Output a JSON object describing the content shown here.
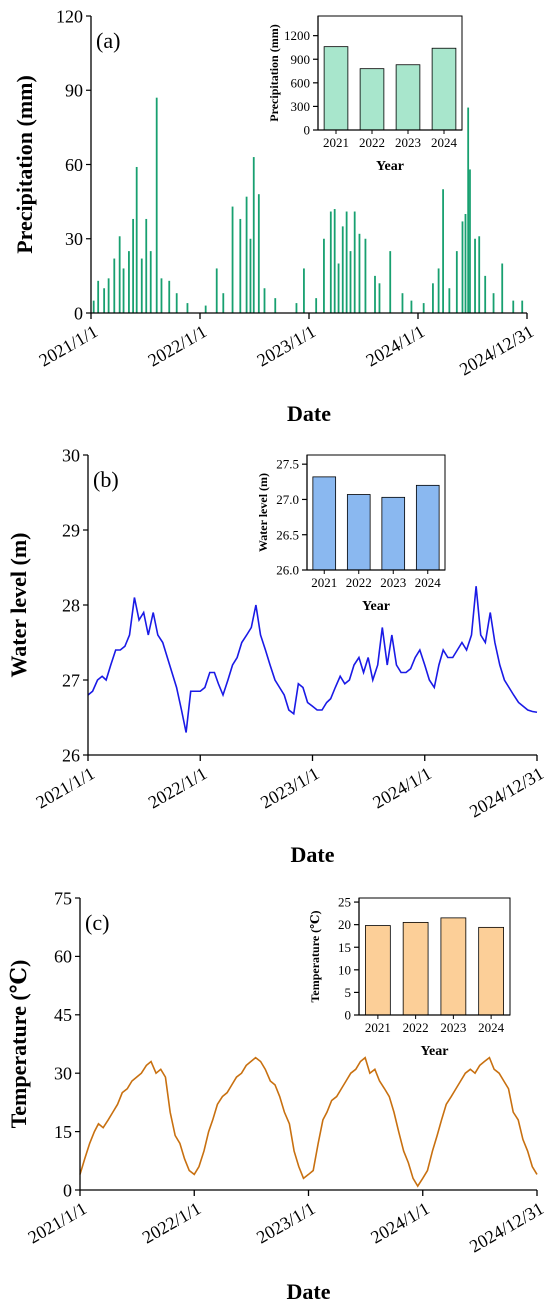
{
  "chart_data": [
    {
      "type": "bar",
      "annotation": "(a)",
      "xlabel": "Date",
      "ylabel": "Precipitation (mm)",
      "color": "#18a070",
      "x": [
        "2021/1/10",
        "2021/1/25",
        "2021/2/14",
        "2021/3/1",
        "2021/3/20",
        "2021/4/7",
        "2021/4/20",
        "2021/5/8",
        "2021/5/22",
        "2021/6/3",
        "2021/6/20",
        "2021/7/5",
        "2021/7/20",
        "2021/8/9",
        "2021/8/25",
        "2021/9/20",
        "2021/10/15",
        "2021/11/20",
        "2022/1/20",
        "2022/2/26",
        "2022/3/20",
        "2022/4/20",
        "2022/5/16",
        "2022/6/6",
        "2022/6/19",
        "2022/6/30",
        "2022/7/17",
        "2022/8/5",
        "2022/9/10",
        "2022/11/20",
        "2022/12/15",
        "2023/1/25",
        "2023/2/20",
        "2023/3/15",
        "2023/3/28",
        "2023/4/10",
        "2023/4/24",
        "2023/5/7",
        "2023/5/20",
        "2023/6/3",
        "2023/6/19",
        "2023/7/9",
        "2023/8/10",
        "2023/8/25",
        "2023/9/30",
        "2023/11/10",
        "2023/12/10",
        "2024/1/20",
        "2024/2/20",
        "2024/3/10",
        "2024/3/25",
        "2024/4/15",
        "2024/5/10",
        "2024/5/29",
        "2024/6/8",
        "2024/6/17",
        "2024/6/23",
        "2024/7/10",
        "2024/7/24",
        "2024/8/13",
        "2024/9/10",
        "2024/10/9",
        "2024/11/15",
        "2024/12/15"
      ],
      "values": [
        5,
        13,
        10,
        14,
        22,
        31,
        18,
        25,
        38,
        59,
        22,
        38,
        25,
        87,
        14,
        13,
        8,
        4,
        3,
        18,
        8,
        43,
        38,
        47,
        30,
        63,
        48,
        10,
        6,
        4,
        18,
        6,
        30,
        41,
        42,
        20,
        35,
        41,
        25,
        41,
        32,
        30,
        15,
        12,
        25,
        8,
        5,
        4,
        12,
        18,
        50,
        10,
        25,
        37,
        40,
        83,
        58,
        30,
        31,
        15,
        8,
        20,
        5,
        5
      ],
      "xlim": [
        "2021/1/1",
        "2024/12/31"
      ],
      "xticks": [
        "2021/1/1",
        "2022/1/1",
        "2023/1/1",
        "2024/1/1",
        "2024/12/31"
      ],
      "ylim": [
        0,
        120
      ],
      "yticks": [
        0,
        30,
        60,
        90,
        120
      ]
    },
    {
      "type": "bar",
      "xlabel": "Year",
      "ylabel": "Precipitation (mm)",
      "color": "#a8e6cc",
      "categories": [
        "2021",
        "2022",
        "2023",
        "2024"
      ],
      "values": [
        1060,
        780,
        830,
        1040
      ],
      "ylim": [
        0,
        1450
      ],
      "yticks": [
        0,
        300,
        600,
        900,
        1200
      ]
    },
    {
      "type": "line",
      "annotation": "(b)",
      "xlabel": "Date",
      "ylabel": "Water level (m)",
      "color": "#1a1ae6",
      "x": [
        "2021/1/1",
        "2021/1/16",
        "2021/2/1",
        "2021/2/16",
        "2021/3/1",
        "2021/3/16",
        "2021/4/1",
        "2021/4/16",
        "2021/5/1",
        "2021/5/16",
        "2021/6/1",
        "2021/6/16",
        "2021/7/1",
        "2021/7/16",
        "2021/8/1",
        "2021/8/16",
        "2021/9/1",
        "2021/9/16",
        "2021/10/1",
        "2021/10/16",
        "2021/11/1",
        "2021/11/16",
        "2021/12/1",
        "2021/12/16",
        "2022/1/1",
        "2022/1/16",
        "2022/2/1",
        "2022/2/16",
        "2022/3/1",
        "2022/3/16",
        "2022/4/1",
        "2022/4/16",
        "2022/5/1",
        "2022/5/16",
        "2022/6/1",
        "2022/6/16",
        "2022/7/1",
        "2022/7/16",
        "2022/8/1",
        "2022/8/16",
        "2022/9/1",
        "2022/9/16",
        "2022/10/1",
        "2022/10/16",
        "2022/11/1",
        "2022/11/16",
        "2022/12/1",
        "2022/12/16",
        "2023/1/1",
        "2023/1/16",
        "2023/2/1",
        "2023/2/16",
        "2023/3/1",
        "2023/3/16",
        "2023/4/1",
        "2023/4/16",
        "2023/5/1",
        "2023/5/16",
        "2023/6/1",
        "2023/6/16",
        "2023/7/1",
        "2023/7/16",
        "2023/8/1",
        "2023/8/16",
        "2023/9/1",
        "2023/9/16",
        "2023/10/1",
        "2023/10/16",
        "2023/11/1",
        "2023/11/16",
        "2023/12/1",
        "2023/12/16",
        "2024/1/1",
        "2024/1/16",
        "2024/2/1",
        "2024/2/16",
        "2024/3/1",
        "2024/3/16",
        "2024/4/1",
        "2024/4/16",
        "2024/5/1",
        "2024/5/16",
        "2024/6/1",
        "2024/6/16",
        "2024/7/1",
        "2024/7/16",
        "2024/8/1",
        "2024/8/16",
        "2024/9/1",
        "2024/9/16",
        "2024/10/1",
        "2024/10/16",
        "2024/11/1",
        "2024/11/16",
        "2024/12/1",
        "2024/12/16",
        "2024/12/31"
      ],
      "values": [
        26.8,
        26.85,
        27.0,
        27.05,
        27.0,
        27.2,
        27.4,
        27.4,
        27.45,
        27.6,
        28.1,
        27.8,
        27.9,
        27.6,
        27.9,
        27.6,
        27.5,
        27.3,
        27.1,
        26.9,
        26.6,
        26.3,
        26.85,
        26.85,
        26.85,
        26.9,
        27.1,
        27.1,
        26.95,
        26.8,
        27.0,
        27.2,
        27.3,
        27.5,
        27.6,
        27.7,
        28.0,
        27.6,
        27.4,
        27.2,
        27.0,
        26.9,
        26.8,
        26.6,
        26.55,
        26.95,
        26.9,
        26.7,
        26.65,
        26.6,
        26.6,
        26.7,
        26.75,
        26.9,
        27.05,
        26.95,
        27.0,
        27.2,
        27.3,
        27.1,
        27.3,
        27.0,
        27.2,
        27.7,
        27.2,
        27.6,
        27.2,
        27.1,
        27.1,
        27.15,
        27.3,
        27.4,
        27.2,
        27.0,
        26.9,
        27.2,
        27.4,
        27.3,
        27.3,
        27.4,
        27.5,
        27.4,
        27.6,
        28.25,
        27.6,
        27.5,
        27.9,
        27.5,
        27.2,
        27.0,
        26.9,
        26.8,
        26.7,
        26.65,
        26.6,
        26.58,
        26.57
      ],
      "xlim": [
        "2021/1/1",
        "2024/12/31"
      ],
      "xticks": [
        "2021/1/1",
        "2022/1/1",
        "2023/1/1",
        "2024/1/1",
        "2024/12/31"
      ],
      "ylim": [
        26,
        30
      ],
      "yticks": [
        26,
        27,
        28,
        29,
        30
      ]
    },
    {
      "type": "bar",
      "xlabel": "Year",
      "ylabel": "Water level (m)",
      "color": "#8ab8f0",
      "categories": [
        "2021",
        "2022",
        "2023",
        "2024"
      ],
      "values": [
        27.32,
        27.07,
        27.03,
        27.2
      ],
      "ylim": [
        26,
        27.63
      ],
      "yticks": [
        {
          "value": 26,
          "label": "26.0"
        },
        26.5,
        {
          "value": 27,
          "label": "27.0"
        },
        27.5
      ]
    },
    {
      "type": "line",
      "annotation": "(c)",
      "xlabel": "Date",
      "ylabel": "Temperature (℃)",
      "color": "#c87010",
      "x": [
        "2021/1/1",
        "2021/1/16",
        "2021/2/1",
        "2021/2/16",
        "2021/3/1",
        "2021/3/16",
        "2021/4/1",
        "2021/4/16",
        "2021/5/1",
        "2021/5/16",
        "2021/6/1",
        "2021/6/16",
        "2021/7/1",
        "2021/7/16",
        "2021/8/1",
        "2021/8/16",
        "2021/9/1",
        "2021/9/16",
        "2021/10/1",
        "2021/10/16",
        "2021/11/1",
        "2021/11/16",
        "2021/12/1",
        "2021/12/16",
        "2022/1/1",
        "2022/1/16",
        "2022/2/1",
        "2022/2/16",
        "2022/3/1",
        "2022/3/16",
        "2022/4/1",
        "2022/4/16",
        "2022/5/1",
        "2022/5/16",
        "2022/6/1",
        "2022/6/16",
        "2022/7/1",
        "2022/7/16",
        "2022/8/1",
        "2022/8/16",
        "2022/9/1",
        "2022/9/16",
        "2022/10/1",
        "2022/10/16",
        "2022/11/1",
        "2022/11/16",
        "2022/12/1",
        "2022/12/16",
        "2023/1/1",
        "2023/1/16",
        "2023/2/1",
        "2023/2/16",
        "2023/3/1",
        "2023/3/16",
        "2023/4/1",
        "2023/4/16",
        "2023/5/1",
        "2023/5/16",
        "2023/6/1",
        "2023/6/16",
        "2023/7/1",
        "2023/7/16",
        "2023/8/1",
        "2023/8/16",
        "2023/9/1",
        "2023/9/16",
        "2023/10/1",
        "2023/10/16",
        "2023/11/1",
        "2023/11/16",
        "2023/12/1",
        "2023/12/16",
        "2024/1/1",
        "2024/1/16",
        "2024/2/1",
        "2024/2/16",
        "2024/3/1",
        "2024/3/16",
        "2024/4/1",
        "2024/4/16",
        "2024/5/1",
        "2024/5/16",
        "2024/6/1",
        "2024/6/16",
        "2024/7/1",
        "2024/7/16",
        "2024/8/1",
        "2024/8/16",
        "2024/9/1",
        "2024/9/16",
        "2024/10/1",
        "2024/10/16",
        "2024/11/1",
        "2024/11/16",
        "2024/12/1",
        "2024/12/16",
        "2024/12/31"
      ],
      "values": [
        4,
        8,
        12,
        15,
        17,
        16,
        18,
        20,
        22,
        25,
        26,
        28,
        29,
        30,
        32,
        33,
        30,
        31,
        29,
        20,
        14,
        12,
        8,
        5,
        4,
        6,
        10,
        15,
        18,
        22,
        24,
        25,
        27,
        29,
        30,
        32,
        33,
        34,
        33,
        31,
        28,
        27,
        24,
        20,
        17,
        10,
        6,
        3,
        4,
        5,
        12,
        18,
        20,
        23,
        24,
        26,
        28,
        30,
        31,
        33,
        34,
        30,
        31,
        28,
        26,
        24,
        20,
        15,
        10,
        7,
        3,
        1,
        3,
        5,
        10,
        14,
        18,
        22,
        24,
        26,
        28,
        30,
        31,
        30,
        32,
        33,
        34,
        31,
        30,
        28,
        26,
        20,
        18,
        13,
        10,
        6,
        4
      ],
      "xlim": [
        "2021/1/1",
        "2024/12/31"
      ],
      "xticks": [
        "2021/1/1",
        "2022/1/1",
        "2023/1/1",
        "2024/1/1",
        "2024/12/31"
      ],
      "ylim": [
        0,
        75
      ],
      "yticks": [
        0,
        15,
        30,
        45,
        60,
        75
      ]
    },
    {
      "type": "bar",
      "xlabel": "Year",
      "ylabel": "Temperature (℃)",
      "color": "#fccf98",
      "categories": [
        "2021",
        "2022",
        "2023",
        "2024"
      ],
      "values": [
        19.8,
        20.5,
        21.5,
        19.4
      ],
      "ylim": [
        0,
        25.9
      ],
      "yticks": [
        0,
        5,
        10,
        15,
        20,
        25
      ]
    }
  ]
}
